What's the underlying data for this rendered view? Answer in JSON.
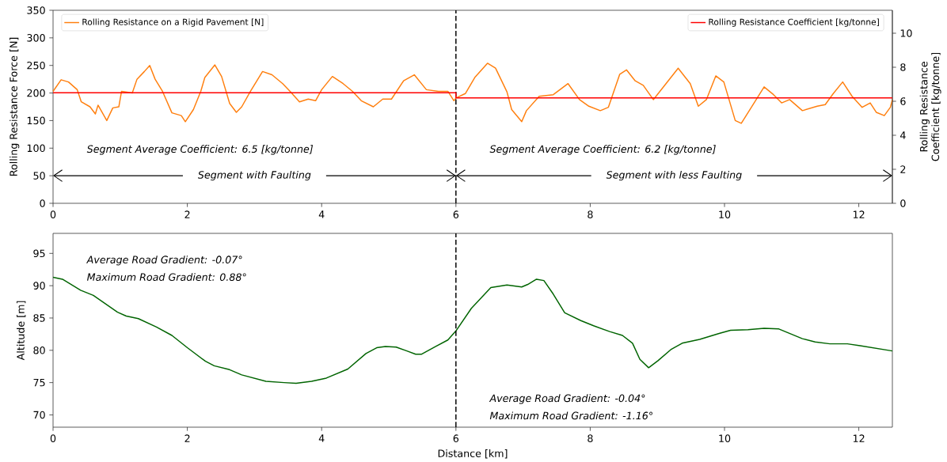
{
  "chart_data": [
    {
      "type": "line",
      "ylabel": "Rolling Resistance Force [N]",
      "y2label": "Rolling Resistance Coefficient [kg/tonne]",
      "xlim": [
        0,
        12.5
      ],
      "xticks": [
        0,
        2,
        4,
        6,
        8,
        10,
        12
      ],
      "ylim": [
        0,
        350
      ],
      "yticks": [
        0,
        50,
        100,
        150,
        200,
        250,
        300,
        350
      ],
      "y2lim": [
        0,
        11.35
      ],
      "y2ticks": [
        0,
        2,
        4,
        6,
        8,
        10
      ],
      "legend": "top left",
      "ref_lines": [
        {
          "axis": "x",
          "value": 6,
          "color": "#000000",
          "line_style": "dashed"
        }
      ],
      "annotations": [
        "Segment Average Coefficient: 6.5 [kg/tonne]",
        "Segment Average Coefficient: 6.2 [kg/tonne]",
        "Segment with Faulting",
        "Segment with less Faulting"
      ],
      "series": [
        {
          "name": "Rolling Resistance on a Rigid Pavement [N]",
          "color": "#ff7f0e",
          "x": [
            0,
            0.12,
            0.23,
            0.36,
            0.42,
            0.55,
            0.63,
            0.67,
            0.8,
            0.89,
            0.98,
            1.02,
            1.18,
            1.25,
            1.36,
            1.44,
            1.52,
            1.63,
            1.77,
            1.91,
            1.97,
            2.09,
            2.2,
            2.26,
            2.41,
            2.51,
            2.63,
            2.73,
            2.81,
            2.94,
            3.12,
            3.26,
            3.42,
            3.53,
            3.67,
            3.8,
            3.91,
            4.0,
            4.16,
            4.32,
            4.46,
            4.59,
            4.77,
            4.91,
            5.04,
            5.22,
            5.38,
            5.56,
            5.74,
            5.88,
            5.97,
            6.0,
            6.14,
            6.28,
            6.47,
            6.59,
            6.76,
            6.83,
            6.98,
            7.05,
            7.24,
            7.45,
            7.67,
            7.84,
            7.98,
            8.15,
            8.27,
            8.44,
            8.54,
            8.67,
            8.79,
            8.94,
            9.11,
            9.31,
            9.49,
            9.61,
            9.73,
            9.87,
            9.99,
            10.16,
            10.25,
            10.4,
            10.59,
            10.73,
            10.85,
            10.97,
            11.16,
            11.38,
            11.5,
            11.62,
            11.76,
            11.9,
            12.05,
            12.17,
            12.26,
            12.38,
            12.47,
            12.5
          ],
          "values": [
            203,
            224,
            220,
            206,
            184,
            175,
            162,
            178,
            150,
            173,
            175,
            203,
            200,
            225,
            239,
            250,
            225,
            203,
            164,
            159,
            148,
            170,
            203,
            228,
            251,
            230,
            181,
            165,
            175,
            203,
            239,
            233,
            217,
            203,
            184,
            189,
            186,
            206,
            230,
            217,
            203,
            186,
            175,
            189,
            189,
            222,
            233,
            206,
            203,
            203,
            186,
            191,
            199,
            228,
            254,
            245,
            202,
            170,
            148,
            168,
            194,
            197,
            217,
            188,
            176,
            168,
            174,
            234,
            242,
            222,
            214,
            188,
            214,
            245,
            217,
            176,
            188,
            231,
            220,
            150,
            145,
            174,
            211,
            197,
            182,
            188,
            168,
            176,
            179,
            199,
            220,
            194,
            174,
            182,
            165,
            159,
            174,
            188
          ]
        },
        {
          "name": "Rolling Resistance Coefficient [kg/tonne]",
          "color": "#ff0000",
          "axis": "y2",
          "x": [
            0,
            6,
            6,
            12.5
          ],
          "values": [
            6.5,
            6.5,
            6.2,
            6.2
          ]
        }
      ]
    },
    {
      "type": "line",
      "xlabel": "Distance [km]",
      "ylabel": "Altitude [m]",
      "xlim": [
        0,
        12.5
      ],
      "xticks": [
        0,
        2,
        4,
        6,
        8,
        10,
        12
      ],
      "ylim": [
        68.1,
        98.1
      ],
      "yticks": [
        70,
        75,
        80,
        85,
        90,
        95
      ],
      "ref_lines": [
        {
          "axis": "x",
          "value": 6,
          "color": "#000000",
          "line_style": "dashed"
        }
      ],
      "annotations": [
        "Average Road Gradient: -0.07°",
        "Maximum Road Gradient: 0.88°",
        "Average Road Gradient: -0.04°",
        "Maximum Road Gradient: -1.16°"
      ],
      "series": [
        {
          "color": "#006400",
          "x": [
            0,
            0.14,
            0.41,
            0.6,
            0.78,
            0.96,
            1.09,
            1.27,
            1.54,
            1.77,
            2.0,
            2.27,
            2.4,
            2.63,
            2.81,
            3.17,
            3.44,
            3.62,
            3.85,
            4.07,
            4.39,
            4.66,
            4.82,
            4.95,
            5.11,
            5.27,
            5.4,
            5.49,
            5.7,
            5.88,
            6.0,
            6.23,
            6.52,
            6.76,
            6.98,
            7.07,
            7.2,
            7.31,
            7.45,
            7.62,
            7.86,
            8.05,
            8.29,
            8.48,
            8.63,
            8.74,
            8.87,
            9.01,
            9.2,
            9.37,
            9.63,
            9.92,
            10.09,
            10.35,
            10.59,
            10.81,
            11.16,
            11.35,
            11.57,
            11.83,
            12.02,
            12.26,
            12.5
          ],
          "values": [
            91.3,
            91.0,
            89.3,
            88.5,
            87.2,
            85.9,
            85.3,
            84.9,
            83.6,
            82.3,
            80.4,
            78.3,
            77.6,
            77.0,
            76.2,
            75.2,
            75.0,
            74.9,
            75.2,
            75.7,
            77.1,
            79.5,
            80.4,
            80.6,
            80.5,
            79.9,
            79.4,
            79.4,
            80.6,
            81.6,
            83.0,
            86.5,
            89.7,
            90.1,
            89.8,
            90.2,
            91.0,
            90.8,
            88.7,
            85.8,
            84.6,
            83.8,
            82.9,
            82.3,
            81.1,
            78.6,
            77.3,
            78.4,
            80.1,
            81.1,
            81.7,
            82.6,
            83.1,
            83.2,
            83.4,
            83.3,
            81.8,
            81.3,
            81.0,
            81.0,
            80.7,
            80.3,
            79.9
          ]
        }
      ]
    }
  ]
}
